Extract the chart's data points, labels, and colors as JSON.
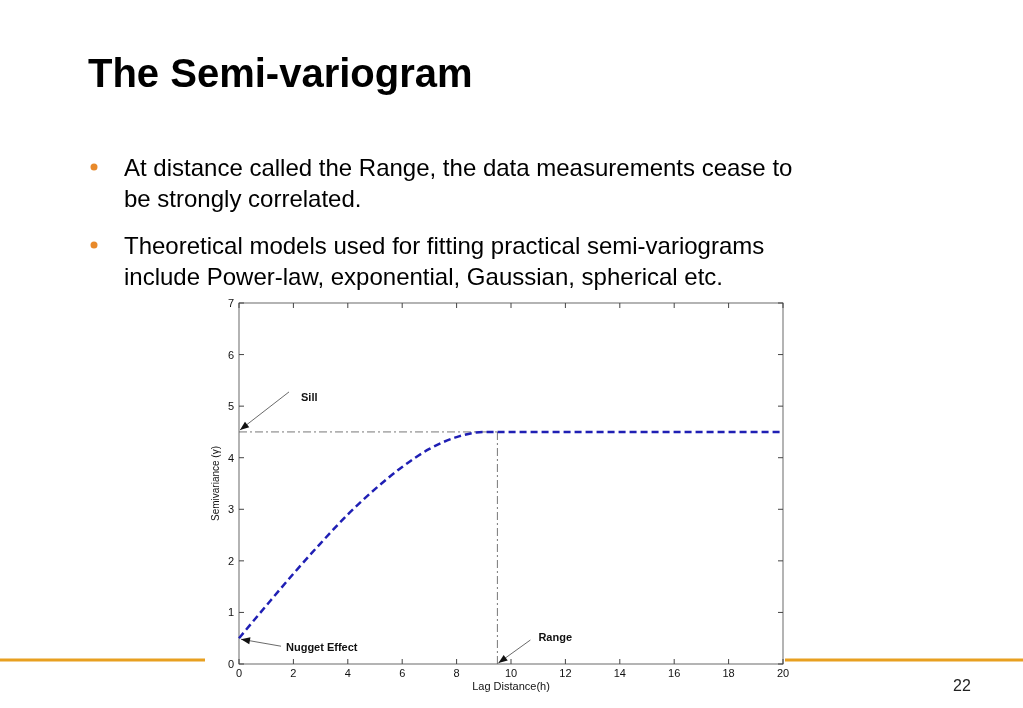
{
  "chart_data": {
    "type": "line",
    "title": "The Semi-variogram",
    "xlabel": "Lag Distance(h)",
    "ylabel": "Semivariance (γ)",
    "x": [
      0,
      1,
      2,
      3,
      4,
      5,
      6,
      7,
      8,
      9,
      9.5,
      12,
      14,
      16,
      18,
      20
    ],
    "series": [
      {
        "color": "#1f1fb4",
        "values": [
          0.5,
          1.13,
          1.75,
          2.34,
          2.9,
          3.39,
          3.82,
          4.17,
          4.4,
          4.5,
          4.5,
          4.5,
          4.5,
          4.5,
          4.5,
          4.5
        ]
      }
    ],
    "xlim": [
      0,
      20
    ],
    "xticks": [
      0,
      2,
      4,
      6,
      8,
      10,
      12,
      14,
      16,
      18,
      20
    ],
    "ylim": [
      0,
      7
    ],
    "yticks": [
      0,
      1,
      2,
      3,
      4,
      5,
      6,
      7
    ],
    "grid": false,
    "marker": "none",
    "line_style": "dashed",
    "ref_lines": [
      {
        "axis": "y",
        "value": 4.5,
        "label": "Sill",
        "color": "#555555",
        "line_style": "dashdot"
      },
      {
        "axis": "x",
        "value": 9.5,
        "label": "Range",
        "color": "#555555",
        "line_style": "dashdot"
      }
    ],
    "annotations": [
      "At distance called the Range, the data measurements cease to be strongly correlated.",
      "Theoretical models used for fitting practical semi-variograms include Power-law, exponential, Gaussian, spherical etc.",
      {
        "text": "Nugget Effect",
        "x": 0,
        "y": 0.5
      },
      "22"
    ]
  }
}
